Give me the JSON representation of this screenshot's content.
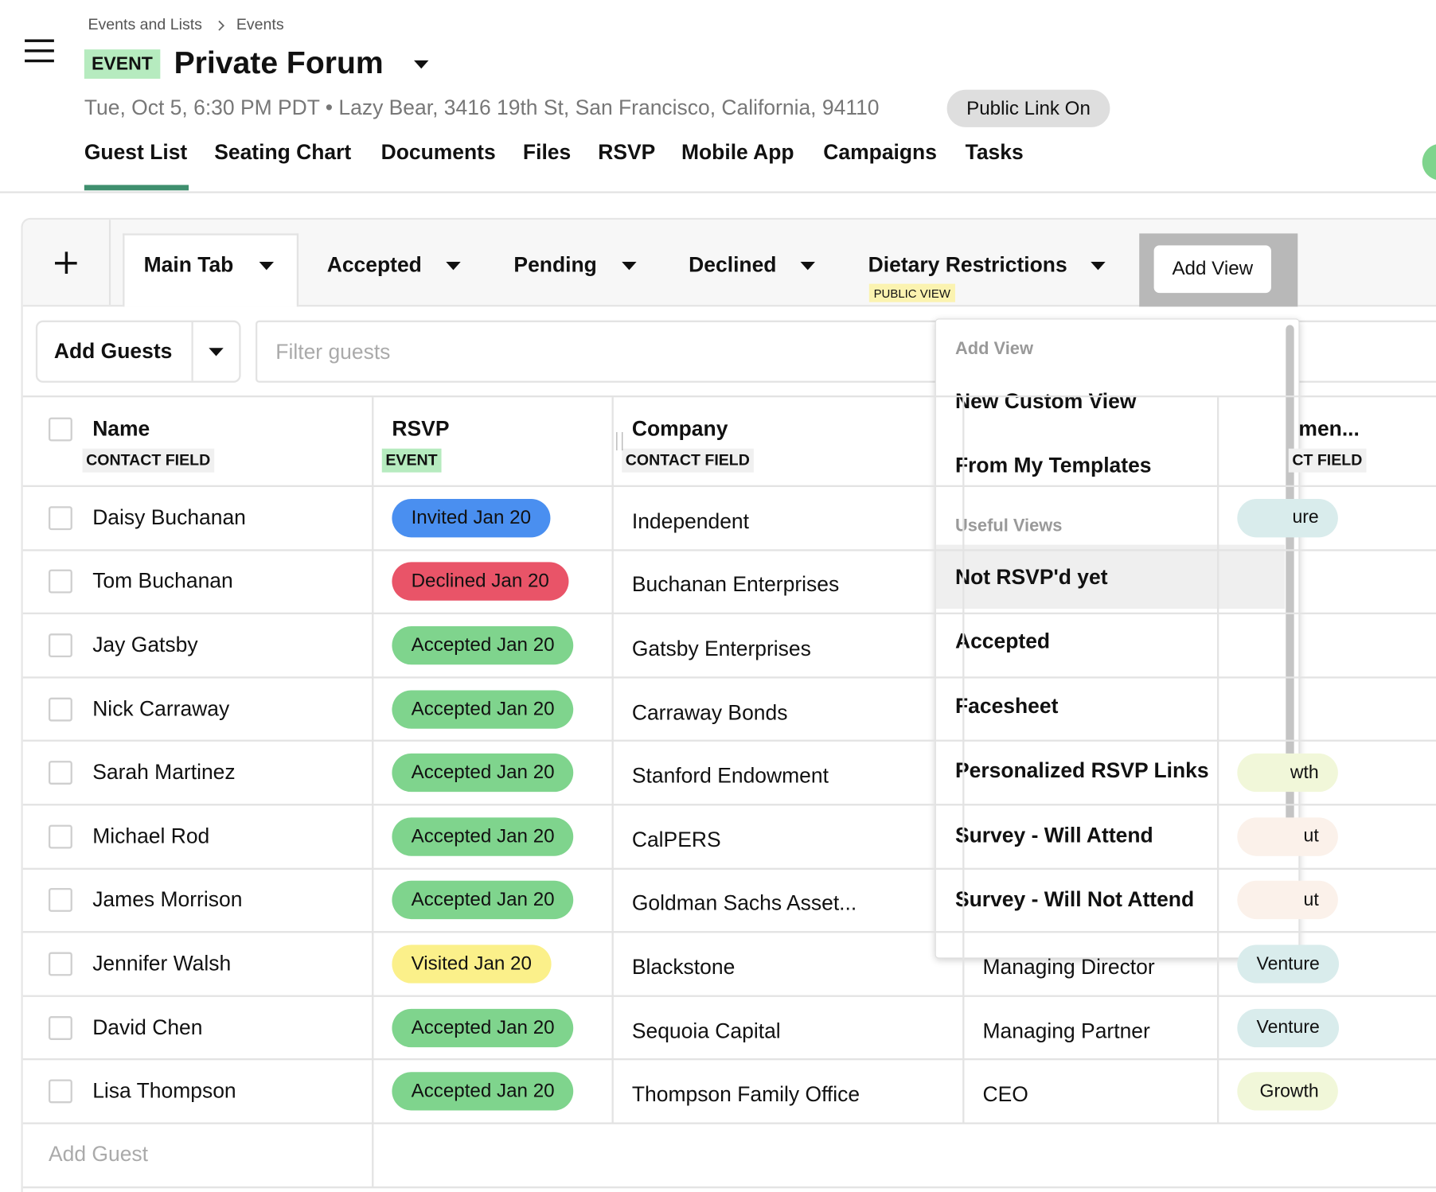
{
  "breadcrumb": [
    "Events and Lists",
    "Events"
  ],
  "header": {
    "badge": "EVENT",
    "title": "Private Forum",
    "details": "Tue, Oct 5, 6:30 PM PDT • Lazy Bear, 3416 19th St, San Francisco, California, 94110",
    "public_link": "Public Link On"
  },
  "nav": [
    "Guest List",
    "Seating Chart",
    "Documents",
    "Files",
    "RSVP",
    "Mobile App",
    "Campaigns",
    "Tasks"
  ],
  "view_tabs": {
    "tabs": [
      "Main Tab",
      "Accepted",
      "Pending",
      "Declined",
      "Dietary Restrictions"
    ],
    "public_badge": "PUBLIC VIEW",
    "add_view": "Add View"
  },
  "toolbar": {
    "add_guests": "Add Guests",
    "filter_placeholder": "Filter guests"
  },
  "columns": [
    {
      "title": "Name",
      "sub": "CONTACT FIELD"
    },
    {
      "title": "RSVP",
      "sub": "EVENT"
    },
    {
      "title": "Company",
      "sub": "CONTACT FIELD"
    },
    {
      "title": "men...",
      "sub": "CT FIELD"
    }
  ],
  "rows": [
    {
      "name": "Daisy Buchanan",
      "rsvp": "Invited Jan 20",
      "rsvp_color": "#4a8ff0",
      "company": "Independent",
      "tag": "ure",
      "tag_color": "#d9ecec"
    },
    {
      "name": "Tom Buchanan",
      "rsvp": "Declined Jan 20",
      "rsvp_color": "#e95468",
      "company": "Buchanan Enterprises"
    },
    {
      "name": "Jay Gatsby",
      "rsvp": "Accepted Jan 20",
      "rsvp_color": "#7fd48d",
      "company": "Gatsby Enterprises"
    },
    {
      "name": "Nick Carraway",
      "rsvp": "Accepted Jan 20",
      "rsvp_color": "#7fd48d",
      "company": "Carraway Bonds"
    },
    {
      "name": "Sarah Martinez",
      "rsvp": "Accepted Jan 20",
      "rsvp_color": "#7fd48d",
      "company": "Stanford Endowment",
      "tag": "wth",
      "tag_color": "#f1f7d9"
    },
    {
      "name": "Michael Rod",
      "rsvp": "Accepted Jan 20",
      "rsvp_color": "#7fd48d",
      "company": "CalPERS",
      "tag": "ut",
      "tag_color": "#fbf1ea"
    },
    {
      "name": "James Morrison",
      "rsvp": "Accepted Jan 20",
      "rsvp_color": "#7fd48d",
      "company": "Goldman Sachs Asset...",
      "tag": "ut",
      "tag_color": "#fbf1ea"
    },
    {
      "name": "Jennifer Walsh",
      "rsvp": "Visited Jan 20",
      "rsvp_color": "#fbf08a",
      "company": "Blackstone",
      "title": "Managing Director",
      "tag": "Venture",
      "tag_color": "#d9ecec"
    },
    {
      "name": "David Chen",
      "rsvp": "Accepted Jan 20",
      "rsvp_color": "#7fd48d",
      "company": "Sequoia Capital",
      "title": "Managing Partner",
      "tag": "Venture",
      "tag_color": "#d9ecec"
    },
    {
      "name": "Lisa Thompson",
      "rsvp": "Accepted Jan 20",
      "rsvp_color": "#7fd48d",
      "company": "Thompson Family Office",
      "title": "CEO",
      "tag": "Growth",
      "tag_color": "#f1f7d9"
    }
  ],
  "add_guest": "Add Guest",
  "dropdown": {
    "sections": [
      {
        "label": "Add View",
        "items": [
          "New Custom View",
          "From My Templates"
        ]
      },
      {
        "label": "Useful Views",
        "items": [
          "Not RSVP'd yet",
          "Accepted",
          "Facesheet",
          "Personalized RSVP Links",
          "Survey - Will Attend",
          "Survey - Will Not Attend"
        ]
      }
    ]
  }
}
